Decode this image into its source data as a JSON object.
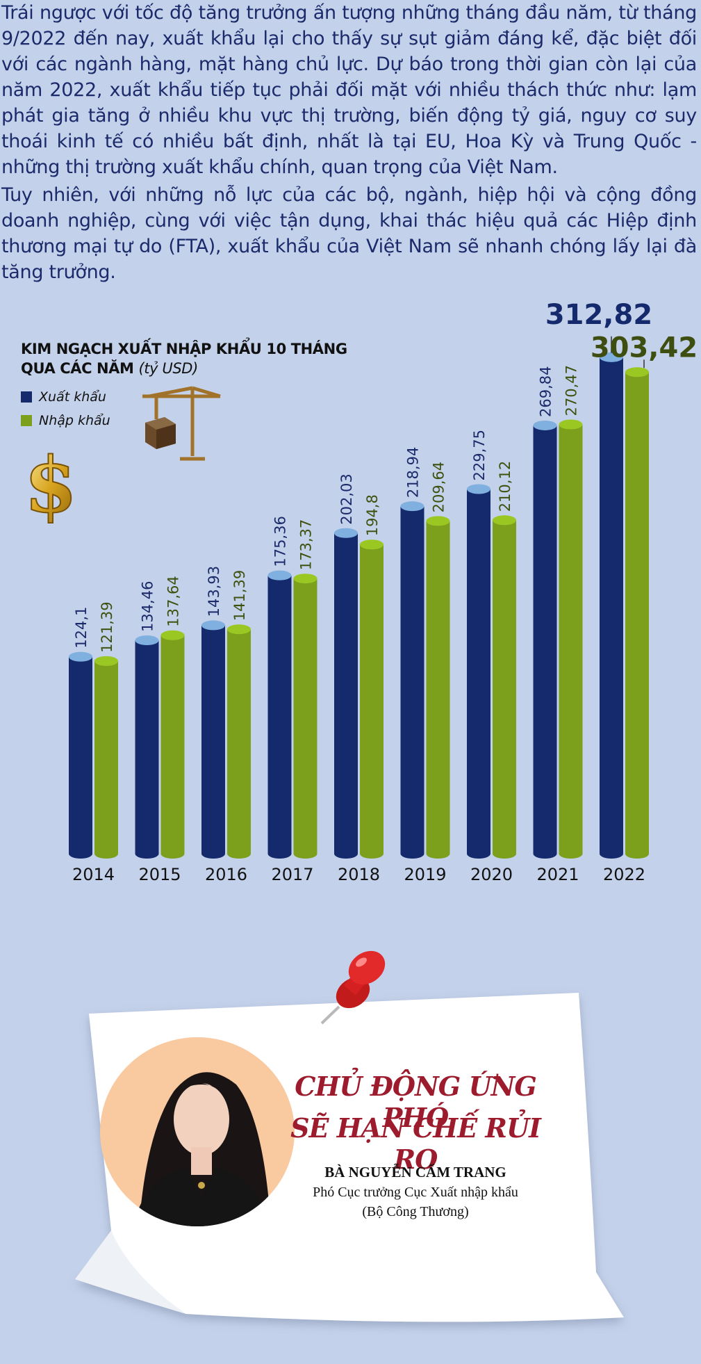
{
  "article": {
    "paragraph_1": "Trái ngược với tốc độ tăng trưởng ấn tượng những tháng đầu năm, từ tháng 9/2022 đến nay, xuất khẩu lại cho thấy sự sụt giảm đáng kể, đặc biệt đối với các ngành hàng, mặt hàng chủ lực. Dự báo trong thời gian còn lại của năm 2022, xuất khẩu tiếp tục phải đối mặt với nhiều thách thức như: lạm phát gia tăng ở nhiều khu vực thị trường, biến động tỷ giá, nguy cơ suy thoái kinh tế có nhiều bất định, nhất là tại EU, Hoa Kỳ và Trung Quốc - những thị trường xuất khẩu chính, quan trọng của Việt Nam.",
    "paragraph_2": "Tuy nhiên, với những nỗ lực của các bộ, ngành, hiệp hội và cộng đồng doanh nghiệp, cùng với việc tận dụng, khai thác hiệu quả các Hiệp định thương mại tự do (FTA), xuất khẩu của Việt Nam sẽ nhanh chóng lấy lại đà tăng trưởng."
  },
  "chart_data": {
    "type": "bar",
    "title_line_1": "KIM NGẠCH XUẤT NHẬP KHẨU 10 THÁNG",
    "title_line_2": "QUA CÁC NĂM",
    "title_unit": "(tỷ USD)",
    "categories": [
      "2014",
      "2015",
      "2016",
      "2017",
      "2018",
      "2019",
      "2020",
      "2021",
      "2022"
    ],
    "series": [
      {
        "name": "Xuất khẩu",
        "color": "#152a6c",
        "values": [
          124.1,
          134.46,
          143.93,
          175.36,
          202.03,
          218.94,
          229.75,
          269.84,
          312.82
        ],
        "labels": [
          "124,1",
          "134,46",
          "143,93",
          "175,36",
          "202,03",
          "218,94",
          "229,75",
          "269,84",
          "312,82"
        ]
      },
      {
        "name": "Nhập khẩu",
        "color": "#7c9f1c",
        "values": [
          121.39,
          137.64,
          141.39,
          173.37,
          194.8,
          209.64,
          210.12,
          270.47,
          303.42
        ],
        "labels": [
          "121,39",
          "137,64",
          "141,39",
          "173,37",
          "194,8",
          "209,64",
          "210,12",
          "270,47",
          "303,42"
        ]
      }
    ],
    "legend_position": "top-left",
    "grid": false
  },
  "quote": {
    "headline_1": "CHỦ ĐỘNG ỨNG PHÓ",
    "headline_2": "SẼ HẠN CHẾ RỦI RO",
    "person_name": "BÀ NGUYỄN CẨM TRANG",
    "person_role_1": "Phó Cục trưởng Cục Xuất nhập khẩu",
    "person_role_2": "(Bộ Công Thương)"
  },
  "icons": [
    "dollar-icon",
    "crane-icon",
    "pin-icon",
    "avatar"
  ]
}
